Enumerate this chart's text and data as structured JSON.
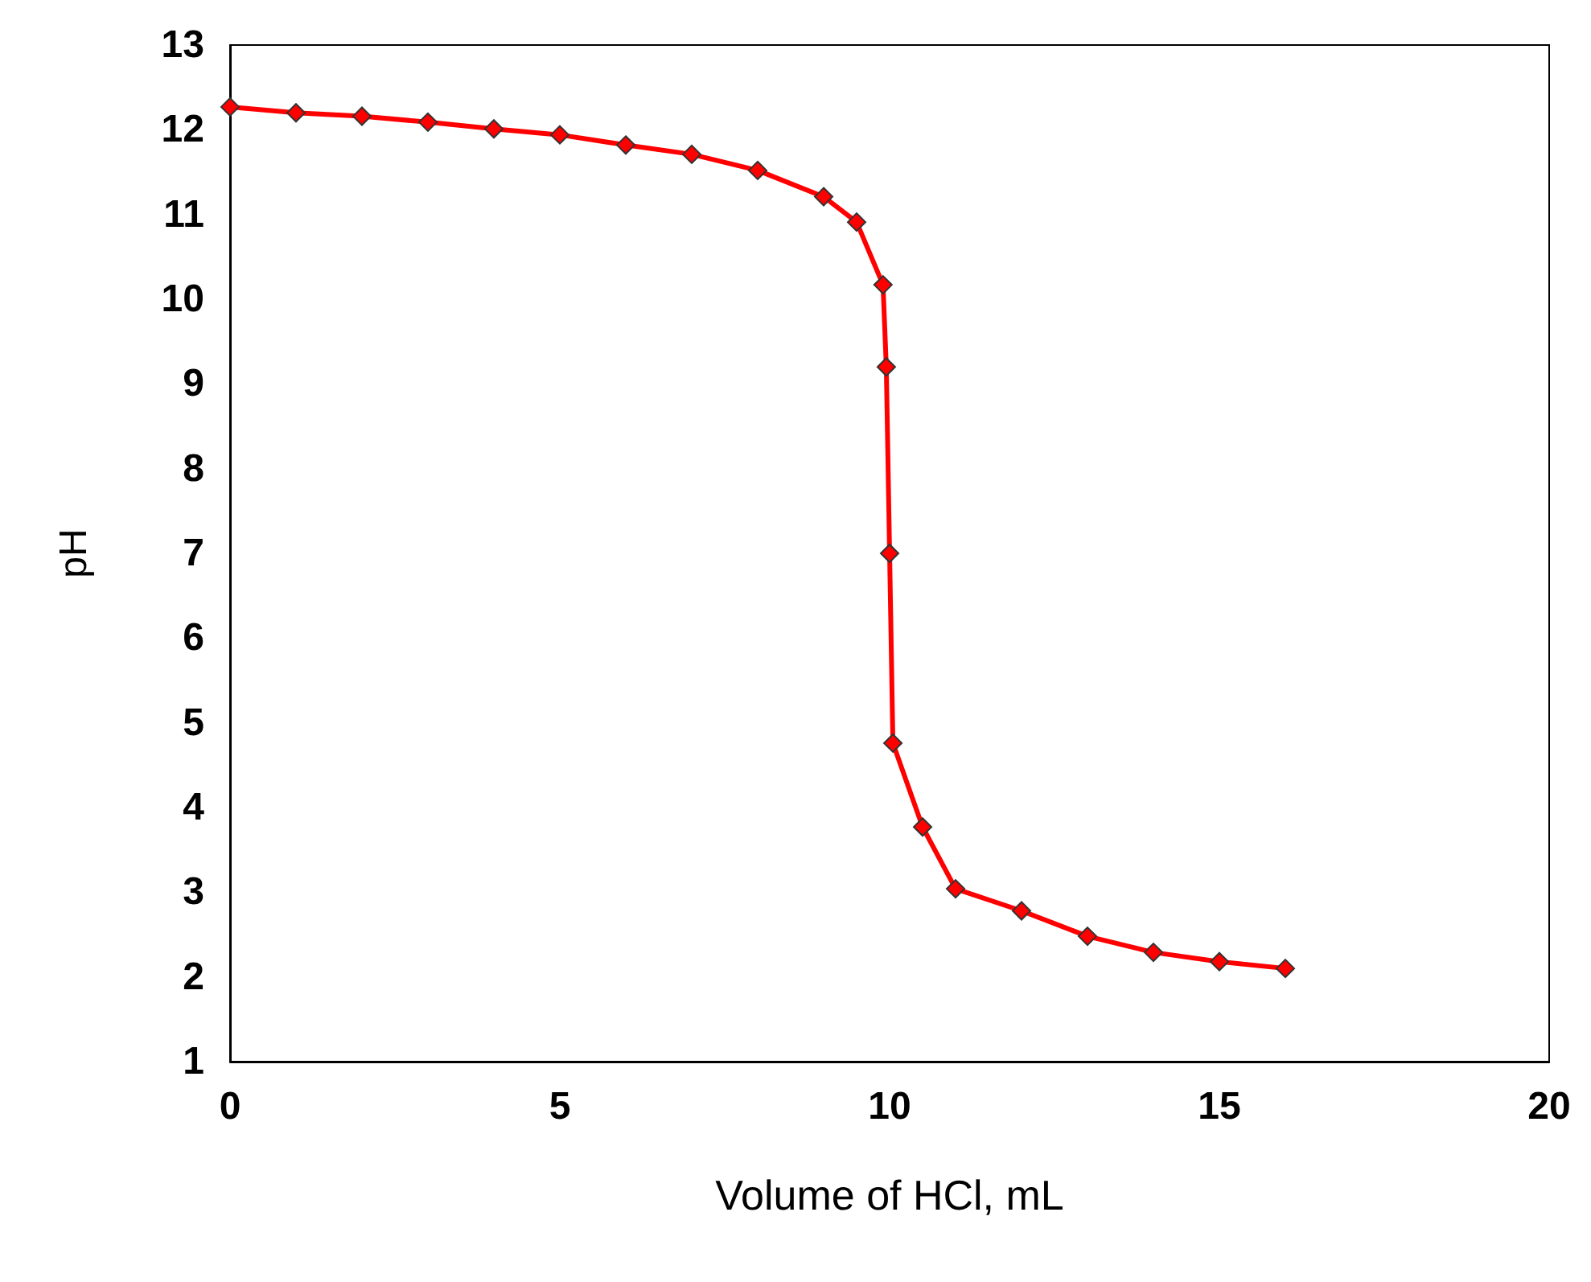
{
  "chart_data": {
    "type": "line",
    "xlabel": "Volume of HCl, mL",
    "ylabel": "pH",
    "x": [
      0,
      1,
      2,
      3,
      4,
      5,
      6,
      7,
      8,
      9,
      9.5,
      9.9,
      9.95,
      10,
      10.05,
      10.5,
      11,
      12,
      13,
      14,
      15,
      16
    ],
    "series": [
      {
        "color": "#ff0000",
        "values": [
          12.27,
          12.2,
          12.16,
          12.09,
          12.01,
          11.94,
          11.82,
          11.71,
          11.52,
          11.21,
          10.91,
          10.17,
          9.2,
          7.0,
          4.76,
          3.77,
          3.04,
          2.78,
          2.48,
          2.29,
          2.18,
          2.1
        ]
      }
    ],
    "xlim": [
      0,
      20
    ],
    "xticks": [
      0,
      5,
      10,
      15,
      20
    ],
    "ylim": [
      1,
      13
    ],
    "yticks": [
      1,
      2,
      3,
      4,
      5,
      6,
      7,
      8,
      9,
      10,
      11,
      12,
      13
    ],
    "grid": false,
    "marker": "diamond",
    "line_style": "solid"
  }
}
